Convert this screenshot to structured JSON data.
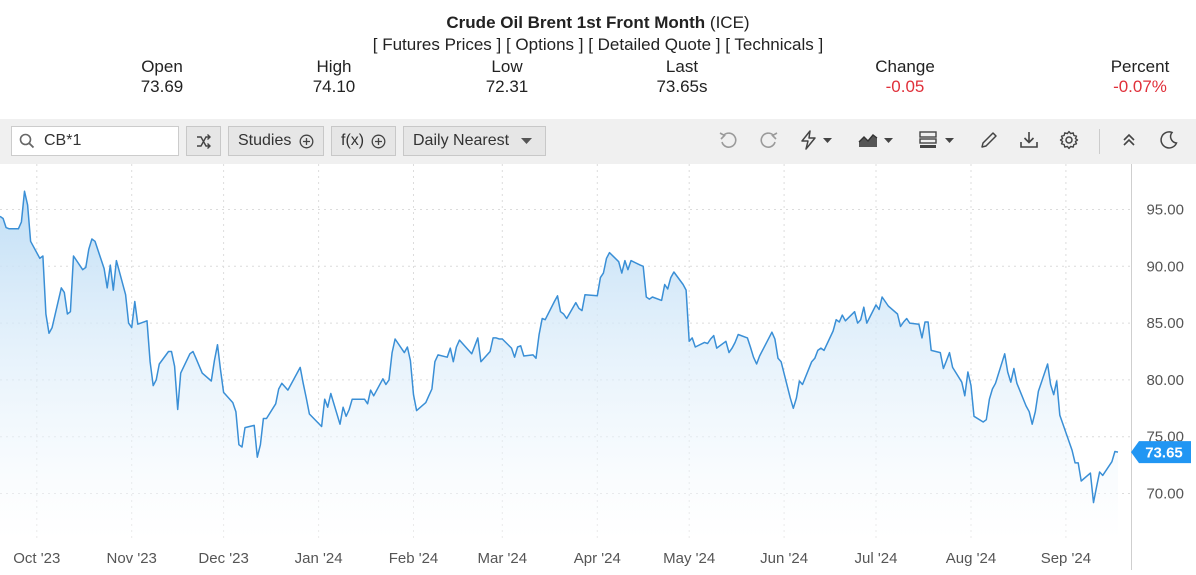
{
  "header": {
    "title_bold": "Crude Oil Brent 1st Front Month",
    "title_exchange": "(ICE)",
    "links": [
      "[ Futures Prices ]",
      "[ Options ]",
      "[ Detailed Quote ]",
      "[ Technicals ]"
    ]
  },
  "quote": {
    "open_label": "Open",
    "open": "73.69",
    "high_label": "High",
    "high": "74.10",
    "low_label": "Low",
    "low": "72.31",
    "last_label": "Last",
    "last": "73.65s",
    "change_label": "Change",
    "change": "-0.05",
    "percent_label": "Percent",
    "percent": "-0.07%"
  },
  "toolbar": {
    "symbol_value": "CB*1",
    "studies_label": "Studies",
    "fx_label": "f(x)",
    "interval_label": "Daily Nearest"
  },
  "colors": {
    "line": "#3a8fd6",
    "fill_top": "#bcdcf5",
    "negative": "#e0303a",
    "last_badge": "#2196f3"
  },
  "chart_data": {
    "type": "area",
    "title": "",
    "xlabel": "",
    "ylabel": "",
    "ylim": [
      66,
      99
    ],
    "y_ticks": [
      "95.00",
      "90.00",
      "85.00",
      "80.00",
      "75.00",
      "70.00"
    ],
    "y_tick_values": [
      95,
      90,
      85,
      80,
      75,
      70
    ],
    "x_ticks": [
      "Oct '23",
      "Nov '23",
      "Dec '23",
      "Jan '24",
      "Feb '24",
      "Mar '24",
      "Apr '24",
      "May '24",
      "Jun '24",
      "Jul '24",
      "Aug '24",
      "Sep '24"
    ],
    "x_tick_dates": [
      "2023-10-01",
      "2023-11-01",
      "2023-12-01",
      "2024-01-01",
      "2024-02-01",
      "2024-03-01",
      "2024-04-01",
      "2024-05-01",
      "2024-06-01",
      "2024-07-01",
      "2024-08-01",
      "2024-09-01"
    ],
    "last_value_label": "73.65",
    "series": [
      {
        "points": [
          [
            "2023-09-19",
            94.4
          ],
          [
            "2023-09-20",
            94.2
          ],
          [
            "2023-09-21",
            93.4
          ],
          [
            "2023-09-22",
            93.3
          ],
          [
            "2023-09-25",
            93.3
          ],
          [
            "2023-09-26",
            93.9
          ],
          [
            "2023-09-27",
            96.6
          ],
          [
            "2023-09-28",
            95.4
          ],
          [
            "2023-09-29",
            92.2
          ],
          [
            "2023-10-02",
            90.7
          ],
          [
            "2023-10-03",
            90.9
          ],
          [
            "2023-10-04",
            85.8
          ],
          [
            "2023-10-05",
            84.1
          ],
          [
            "2023-10-06",
            84.6
          ],
          [
            "2023-10-09",
            88.1
          ],
          [
            "2023-10-10",
            87.7
          ],
          [
            "2023-10-11",
            85.8
          ],
          [
            "2023-10-12",
            86.0
          ],
          [
            "2023-10-13",
            90.9
          ],
          [
            "2023-10-16",
            89.7
          ],
          [
            "2023-10-17",
            89.9
          ],
          [
            "2023-10-18",
            91.5
          ],
          [
            "2023-10-19",
            92.4
          ],
          [
            "2023-10-20",
            92.2
          ],
          [
            "2023-10-23",
            89.8
          ],
          [
            "2023-10-24",
            88.1
          ],
          [
            "2023-10-25",
            90.1
          ],
          [
            "2023-10-26",
            87.9
          ],
          [
            "2023-10-27",
            90.5
          ],
          [
            "2023-10-30",
            87.5
          ],
          [
            "2023-10-31",
            85.0
          ],
          [
            "2023-11-01",
            84.6
          ],
          [
            "2023-11-02",
            86.9
          ],
          [
            "2023-11-03",
            84.9
          ],
          [
            "2023-11-06",
            85.2
          ],
          [
            "2023-11-07",
            81.6
          ],
          [
            "2023-11-08",
            79.5
          ],
          [
            "2023-11-09",
            80.0
          ],
          [
            "2023-11-10",
            81.4
          ],
          [
            "2023-11-13",
            82.5
          ],
          [
            "2023-11-14",
            82.5
          ],
          [
            "2023-11-15",
            81.2
          ],
          [
            "2023-11-16",
            77.4
          ],
          [
            "2023-11-17",
            80.6
          ],
          [
            "2023-11-20",
            82.3
          ],
          [
            "2023-11-21",
            82.5
          ],
          [
            "2023-11-22",
            81.9
          ],
          [
            "2023-11-24",
            80.6
          ],
          [
            "2023-11-27",
            79.9
          ],
          [
            "2023-11-28",
            81.7
          ],
          [
            "2023-11-29",
            83.1
          ],
          [
            "2023-11-30",
            80.9
          ],
          [
            "2023-12-01",
            78.9
          ],
          [
            "2023-12-04",
            78.0
          ],
          [
            "2023-12-05",
            77.2
          ],
          [
            "2023-12-06",
            74.3
          ],
          [
            "2023-12-07",
            74.1
          ],
          [
            "2023-12-08",
            75.8
          ],
          [
            "2023-12-11",
            76.0
          ],
          [
            "2023-12-12",
            73.2
          ],
          [
            "2023-12-13",
            74.3
          ],
          [
            "2023-12-14",
            76.6
          ],
          [
            "2023-12-15",
            76.6
          ],
          [
            "2023-12-18",
            77.9
          ],
          [
            "2023-12-19",
            79.2
          ],
          [
            "2023-12-20",
            79.7
          ],
          [
            "2023-12-21",
            79.4
          ],
          [
            "2023-12-22",
            79.1
          ],
          [
            "2023-12-26",
            81.1
          ],
          [
            "2023-12-27",
            79.7
          ],
          [
            "2023-12-28",
            78.4
          ],
          [
            "2023-12-29",
            77.0
          ],
          [
            "2024-01-02",
            75.9
          ],
          [
            "2024-01-03",
            78.3
          ],
          [
            "2024-01-04",
            77.6
          ],
          [
            "2024-01-05",
            78.8
          ],
          [
            "2024-01-08",
            76.1
          ],
          [
            "2024-01-09",
            77.6
          ],
          [
            "2024-01-10",
            76.8
          ],
          [
            "2024-01-11",
            77.4
          ],
          [
            "2024-01-12",
            78.3
          ],
          [
            "2024-01-16",
            78.3
          ],
          [
            "2024-01-17",
            77.9
          ],
          [
            "2024-01-18",
            79.1
          ],
          [
            "2024-01-19",
            78.6
          ],
          [
            "2024-01-22",
            80.1
          ],
          [
            "2024-01-23",
            79.6
          ],
          [
            "2024-01-24",
            80.0
          ],
          [
            "2024-01-25",
            82.4
          ],
          [
            "2024-01-26",
            83.6
          ],
          [
            "2024-01-29",
            82.4
          ],
          [
            "2024-01-30",
            82.9
          ],
          [
            "2024-01-31",
            81.7
          ],
          [
            "2024-02-01",
            78.7
          ],
          [
            "2024-02-02",
            77.3
          ],
          [
            "2024-02-05",
            78.0
          ],
          [
            "2024-02-06",
            78.6
          ],
          [
            "2024-02-07",
            79.2
          ],
          [
            "2024-02-08",
            81.6
          ],
          [
            "2024-02-09",
            82.2
          ],
          [
            "2024-02-12",
            82.0
          ],
          [
            "2024-02-13",
            82.8
          ],
          [
            "2024-02-14",
            81.6
          ],
          [
            "2024-02-15",
            82.9
          ],
          [
            "2024-02-16",
            83.5
          ],
          [
            "2024-02-20",
            82.3
          ],
          [
            "2024-02-21",
            83.0
          ],
          [
            "2024-02-22",
            83.7
          ],
          [
            "2024-02-23",
            81.6
          ],
          [
            "2024-02-26",
            82.5
          ],
          [
            "2024-02-27",
            83.7
          ],
          [
            "2024-02-28",
            83.7
          ],
          [
            "2024-02-29",
            83.6
          ],
          [
            "2024-03-01",
            83.6
          ],
          [
            "2024-03-04",
            82.8
          ],
          [
            "2024-03-05",
            82.0
          ],
          [
            "2024-03-06",
            82.9
          ],
          [
            "2024-03-07",
            83.0
          ],
          [
            "2024-03-08",
            82.1
          ],
          [
            "2024-03-11",
            82.2
          ],
          [
            "2024-03-12",
            81.9
          ],
          [
            "2024-03-13",
            84.0
          ],
          [
            "2024-03-14",
            85.4
          ],
          [
            "2024-03-15",
            85.3
          ],
          [
            "2024-03-18",
            86.9
          ],
          [
            "2024-03-19",
            87.4
          ],
          [
            "2024-03-20",
            86.0
          ],
          [
            "2024-03-21",
            85.8
          ],
          [
            "2024-03-22",
            85.4
          ],
          [
            "2024-03-25",
            86.8
          ],
          [
            "2024-03-26",
            86.3
          ],
          [
            "2024-03-27",
            86.1
          ],
          [
            "2024-03-28",
            87.5
          ],
          [
            "2024-04-01",
            87.4
          ],
          [
            "2024-04-02",
            89.0
          ],
          [
            "2024-04-03",
            89.4
          ],
          [
            "2024-04-04",
            90.7
          ],
          [
            "2024-04-05",
            91.2
          ],
          [
            "2024-04-08",
            90.4
          ],
          [
            "2024-04-09",
            89.4
          ],
          [
            "2024-04-10",
            90.5
          ],
          [
            "2024-04-11",
            89.7
          ],
          [
            "2024-04-12",
            90.5
          ],
          [
            "2024-04-15",
            90.1
          ],
          [
            "2024-04-16",
            90.0
          ],
          [
            "2024-04-17",
            87.3
          ],
          [
            "2024-04-18",
            87.1
          ],
          [
            "2024-04-19",
            87.3
          ],
          [
            "2024-04-22",
            87.0
          ],
          [
            "2024-04-23",
            88.4
          ],
          [
            "2024-04-24",
            88.0
          ],
          [
            "2024-04-25",
            89.0
          ],
          [
            "2024-04-26",
            89.5
          ],
          [
            "2024-04-29",
            88.4
          ],
          [
            "2024-04-30",
            87.9
          ],
          [
            "2024-05-01",
            83.4
          ],
          [
            "2024-05-02",
            83.7
          ],
          [
            "2024-05-03",
            82.9
          ],
          [
            "2024-05-06",
            83.3
          ],
          [
            "2024-05-07",
            83.2
          ],
          [
            "2024-05-08",
            83.6
          ],
          [
            "2024-05-09",
            83.9
          ],
          [
            "2024-05-10",
            82.8
          ],
          [
            "2024-05-13",
            83.4
          ],
          [
            "2024-05-14",
            82.4
          ],
          [
            "2024-05-15",
            82.8
          ],
          [
            "2024-05-16",
            83.3
          ],
          [
            "2024-05-17",
            84.0
          ],
          [
            "2024-05-20",
            83.7
          ],
          [
            "2024-05-21",
            82.9
          ],
          [
            "2024-05-22",
            82.0
          ],
          [
            "2024-05-23",
            81.4
          ],
          [
            "2024-05-24",
            82.1
          ],
          [
            "2024-05-28",
            84.2
          ],
          [
            "2024-05-29",
            83.6
          ],
          [
            "2024-05-30",
            81.9
          ],
          [
            "2024-05-31",
            81.6
          ],
          [
            "2024-06-03",
            78.4
          ],
          [
            "2024-06-04",
            77.5
          ],
          [
            "2024-06-05",
            78.4
          ],
          [
            "2024-06-06",
            79.9
          ],
          [
            "2024-06-07",
            79.6
          ],
          [
            "2024-06-10",
            81.6
          ],
          [
            "2024-06-11",
            81.9
          ],
          [
            "2024-06-12",
            82.6
          ],
          [
            "2024-06-13",
            82.8
          ],
          [
            "2024-06-14",
            82.6
          ],
          [
            "2024-06-17",
            84.3
          ],
          [
            "2024-06-18",
            85.3
          ],
          [
            "2024-06-19",
            85.1
          ],
          [
            "2024-06-20",
            85.7
          ],
          [
            "2024-06-21",
            85.2
          ],
          [
            "2024-06-24",
            86.0
          ],
          [
            "2024-06-25",
            85.0
          ],
          [
            "2024-06-26",
            85.3
          ],
          [
            "2024-06-27",
            86.4
          ],
          [
            "2024-06-28",
            85.0
          ],
          [
            "2024-07-01",
            86.6
          ],
          [
            "2024-07-02",
            86.2
          ],
          [
            "2024-07-03",
            87.3
          ],
          [
            "2024-07-05",
            86.5
          ],
          [
            "2024-07-08",
            85.8
          ],
          [
            "2024-07-09",
            84.7
          ],
          [
            "2024-07-10",
            85.1
          ],
          [
            "2024-07-11",
            85.4
          ],
          [
            "2024-07-12",
            85.0
          ],
          [
            "2024-07-15",
            84.9
          ],
          [
            "2024-07-16",
            83.7
          ],
          [
            "2024-07-17",
            85.1
          ],
          [
            "2024-07-18",
            85.1
          ],
          [
            "2024-07-19",
            82.6
          ],
          [
            "2024-07-22",
            82.4
          ],
          [
            "2024-07-23",
            81.0
          ],
          [
            "2024-07-24",
            81.7
          ],
          [
            "2024-07-25",
            82.4
          ],
          [
            "2024-07-26",
            81.1
          ],
          [
            "2024-07-29",
            79.8
          ],
          [
            "2024-07-30",
            78.6
          ],
          [
            "2024-07-31",
            80.7
          ],
          [
            "2024-08-01",
            79.5
          ],
          [
            "2024-08-02",
            76.8
          ],
          [
            "2024-08-05",
            76.3
          ],
          [
            "2024-08-06",
            76.5
          ],
          [
            "2024-08-07",
            78.3
          ],
          [
            "2024-08-08",
            79.2
          ],
          [
            "2024-08-09",
            79.7
          ],
          [
            "2024-08-12",
            82.3
          ],
          [
            "2024-08-13",
            80.7
          ],
          [
            "2024-08-14",
            79.8
          ],
          [
            "2024-08-15",
            81.0
          ],
          [
            "2024-08-16",
            79.7
          ],
          [
            "2024-08-19",
            77.7
          ],
          [
            "2024-08-20",
            77.2
          ],
          [
            "2024-08-21",
            76.1
          ],
          [
            "2024-08-22",
            77.2
          ],
          [
            "2024-08-23",
            79.0
          ],
          [
            "2024-08-26",
            81.4
          ],
          [
            "2024-08-27",
            79.6
          ],
          [
            "2024-08-28",
            78.7
          ],
          [
            "2024-08-29",
            79.9
          ],
          [
            "2024-08-30",
            76.9
          ],
          [
            "2024-09-03",
            73.8
          ],
          [
            "2024-09-04",
            72.7
          ],
          [
            "2024-09-05",
            72.7
          ],
          [
            "2024-09-06",
            71.1
          ],
          [
            "2024-09-09",
            71.8
          ],
          [
            "2024-09-10",
            69.2
          ],
          [
            "2024-09-11",
            70.6
          ],
          [
            "2024-09-12",
            71.9
          ],
          [
            "2024-09-13",
            71.6
          ],
          [
            "2024-09-16",
            72.8
          ],
          [
            "2024-09-17",
            73.7
          ],
          [
            "2024-09-18",
            73.65
          ]
        ]
      }
    ]
  }
}
